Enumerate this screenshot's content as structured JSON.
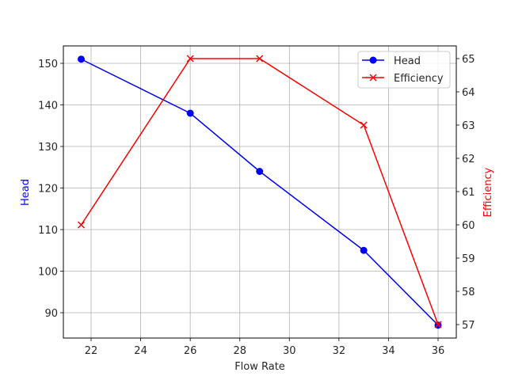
{
  "chart_data": {
    "type": "line",
    "title": "",
    "xlabel": "Flow Rate",
    "ylabel": "Head",
    "ylabel_right": "Efficiency",
    "xlim": [
      20.9,
      36.7
    ],
    "ylim": [
      84,
      154.2
    ],
    "ylim_right": [
      56.6,
      65.4
    ],
    "grid": true,
    "legend_position": "upper right",
    "x": [
      21.6,
      26.0,
      28.8,
      33.0,
      36.0
    ],
    "x_ticks": [
      22,
      24,
      26,
      28,
      30,
      32,
      34,
      36
    ],
    "y_ticks": [
      90,
      100,
      110,
      120,
      130,
      140,
      150
    ],
    "y_ticks_right": [
      57,
      58,
      59,
      60,
      61,
      62,
      63,
      64,
      65
    ],
    "series": [
      {
        "name": "Head",
        "axis": "left",
        "color": "#0000ff",
        "marker": "circle",
        "values": [
          151,
          138,
          124,
          105,
          87
        ]
      },
      {
        "name": "Efficiency",
        "axis": "right",
        "color": "#ff0000",
        "marker": "x",
        "values": [
          60,
          65,
          65,
          63,
          57
        ]
      }
    ]
  },
  "labels": {
    "xlabel": "Flow Rate",
    "ylabel_left": "Head",
    "ylabel_right": "Efficiency",
    "legend": [
      "Head",
      "Efficiency"
    ]
  }
}
